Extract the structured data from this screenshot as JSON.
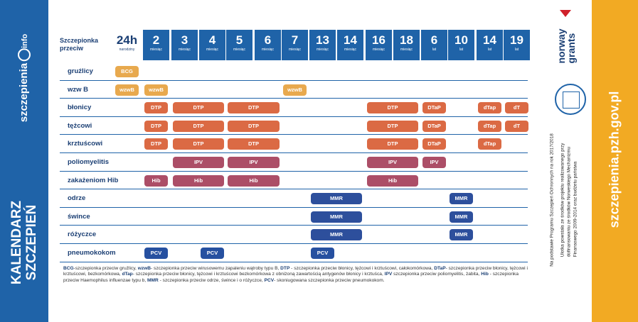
{
  "brand": {
    "text": "szczepienia",
    "suffix": "info"
  },
  "title": {
    "line1": "KALENDARZ",
    "line2": "SZCZEPIEŃ"
  },
  "website": "szczepienia.pzh.gov.pl",
  "header": {
    "label": "Szczepionka przeciw",
    "ages": [
      {
        "n": "24h",
        "u": "narodziny"
      },
      {
        "n": "2",
        "u": "miesiąc"
      },
      {
        "n": "3",
        "u": "miesiąc"
      },
      {
        "n": "4",
        "u": "miesiąc"
      },
      {
        "n": "5",
        "u": "miesiąc"
      },
      {
        "n": "6",
        "u": "miesiąc"
      },
      {
        "n": "7",
        "u": "miesiąc"
      },
      {
        "n": "13",
        "u": "miesiąc"
      },
      {
        "n": "14",
        "u": "miesiąc"
      },
      {
        "n": "16",
        "u": "miesiąc"
      },
      {
        "n": "18",
        "u": "miesiąc"
      },
      {
        "n": "6",
        "u": "lat"
      },
      {
        "n": "10",
        "u": "lat"
      },
      {
        "n": "14",
        "u": "lat"
      },
      {
        "n": "19",
        "u": "lat"
      }
    ]
  },
  "colors": {
    "blue": "#1f63a8",
    "orange": "#f2aa23",
    "navy": "#1b3f74",
    "bcg": "#e8a94e",
    "dtp": "#db6a44",
    "ipv": "#ac4e67",
    "mmr": "#2d4f9c",
    "pcv": "#2650a0"
  },
  "rows": [
    {
      "label": "gruźlicy",
      "pills": [
        {
          "text": "BCG",
          "from": 0,
          "to": 0,
          "color": "#e8a94e"
        }
      ]
    },
    {
      "label": "wzw B",
      "pills": [
        {
          "text": "wzwB",
          "from": 0,
          "to": 0,
          "color": "#e8a94e"
        },
        {
          "text": "wzwB",
          "from": 1,
          "to": 1,
          "color": "#e8a94e"
        },
        {
          "text": "wzwB",
          "from": 6,
          "to": 6,
          "color": "#e8a94e"
        }
      ]
    },
    {
      "label": "błonicy",
      "pills": [
        {
          "text": "DTP",
          "from": 1,
          "to": 1,
          "color": "#db6a44"
        },
        {
          "text": "DTP",
          "from": 2,
          "to": 3,
          "color": "#db6a44"
        },
        {
          "text": "DTP",
          "from": 4,
          "to": 5,
          "color": "#db6a44"
        },
        {
          "text": "DTP",
          "from": 9,
          "to": 10,
          "color": "#db6a44"
        },
        {
          "text": "DTaP",
          "from": 11,
          "to": 11,
          "color": "#db6a44"
        },
        {
          "text": "dTap",
          "from": 13,
          "to": 13,
          "color": "#db6a44"
        },
        {
          "text": "dT",
          "from": 14,
          "to": 14,
          "color": "#db6a44"
        }
      ]
    },
    {
      "label": "tężcowi",
      "pills": [
        {
          "text": "DTP",
          "from": 1,
          "to": 1,
          "color": "#db6a44"
        },
        {
          "text": "DTP",
          "from": 2,
          "to": 3,
          "color": "#db6a44"
        },
        {
          "text": "DTP",
          "from": 4,
          "to": 5,
          "color": "#db6a44"
        },
        {
          "text": "DTP",
          "from": 9,
          "to": 10,
          "color": "#db6a44"
        },
        {
          "text": "DTaP",
          "from": 11,
          "to": 11,
          "color": "#db6a44"
        },
        {
          "text": "dTap",
          "from": 13,
          "to": 13,
          "color": "#db6a44"
        },
        {
          "text": "dT",
          "from": 14,
          "to": 14,
          "color": "#db6a44"
        }
      ]
    },
    {
      "label": "krztuścowi",
      "pills": [
        {
          "text": "DTP",
          "from": 1,
          "to": 1,
          "color": "#db6a44"
        },
        {
          "text": "DTP",
          "from": 2,
          "to": 3,
          "color": "#db6a44"
        },
        {
          "text": "DTP",
          "from": 4,
          "to": 5,
          "color": "#db6a44"
        },
        {
          "text": "DTP",
          "from": 9,
          "to": 10,
          "color": "#db6a44"
        },
        {
          "text": "DTaP",
          "from": 11,
          "to": 11,
          "color": "#db6a44"
        },
        {
          "text": "dTap",
          "from": 13,
          "to": 13,
          "color": "#db6a44"
        }
      ]
    },
    {
      "label": "poliomyelitis",
      "pills": [
        {
          "text": "IPV",
          "from": 2,
          "to": 3,
          "color": "#ac4e67"
        },
        {
          "text": "IPV",
          "from": 4,
          "to": 5,
          "color": "#ac4e67"
        },
        {
          "text": "IPV",
          "from": 9,
          "to": 10,
          "color": "#ac4e67"
        },
        {
          "text": "IPV",
          "from": 11,
          "to": 11,
          "color": "#ac4e67"
        }
      ]
    },
    {
      "label": "zakażeniom Hib",
      "pills": [
        {
          "text": "Hib",
          "from": 1,
          "to": 1,
          "color": "#ac4e67"
        },
        {
          "text": "Hib",
          "from": 2,
          "to": 3,
          "color": "#ac4e67"
        },
        {
          "text": "Hib",
          "from": 4,
          "to": 5,
          "color": "#ac4e67"
        },
        {
          "text": "Hib",
          "from": 9,
          "to": 10,
          "color": "#ac4e67"
        }
      ]
    },
    {
      "label": "odrze",
      "pills": [
        {
          "text": "MMR",
          "from": 7,
          "to": 8,
          "color": "#2d4f9c"
        },
        {
          "text": "MMR",
          "from": 12,
          "to": 12,
          "color": "#2d4f9c"
        }
      ]
    },
    {
      "label": "śwince",
      "pills": [
        {
          "text": "MMR",
          "from": 7,
          "to": 8,
          "color": "#2d4f9c"
        },
        {
          "text": "MMR",
          "from": 12,
          "to": 12,
          "color": "#2d4f9c"
        }
      ]
    },
    {
      "label": "różyczce",
      "pills": [
        {
          "text": "MMR",
          "from": 7,
          "to": 8,
          "color": "#2d4f9c"
        },
        {
          "text": "MMR",
          "from": 12,
          "to": 12,
          "color": "#2d4f9c"
        }
      ]
    },
    {
      "label": "pneumokokom",
      "pills": [
        {
          "text": "PCV",
          "from": 1,
          "to": 1,
          "color": "#2650a0"
        },
        {
          "text": "PCV",
          "from": 3,
          "to": 3,
          "color": "#2650a0"
        },
        {
          "text": "PCV",
          "from": 7,
          "to": 7,
          "color": "#2650a0"
        }
      ]
    }
  ],
  "legend": [
    {
      "k": "BCG",
      "t": "-szczepionka przeciw gruźlicy, "
    },
    {
      "k": "wzwB",
      "t": "- szczepionka przeciw wirusowemu zapaleniu wątroby typu B, "
    },
    {
      "k": "DTP",
      "t": " - szczepionka przeciw błonicy, tężcowi i krztuścowi, całokomórkowa, "
    },
    {
      "k": "DTaP",
      "t": "- szczepionka przeciw błonicy, tężcowi i krztuścowi, bezkomórkowa, "
    },
    {
      "k": "dTap",
      "t": "- szczepionka przeciw błonicy, tężcowi i krztuścowi bezkomórkowa z obniżoną zawartością antygenów błonicy i krztuśca, "
    },
    {
      "k": "IPV",
      "t": " szczepionka przeciw poliomyelitis, żabita, "
    },
    {
      "k": "Hib",
      "t": " - szczepionka przeciw Haemophilus influenzae typu b, "
    },
    {
      "k": "MMR",
      "t": " - szczepionka przeciw odrze, śwince i o różyczce, "
    },
    {
      "k": "PCV",
      "t": "- skoniugowana szczepionka przeciw pneumokokom."
    }
  ],
  "notes": {
    "program": "Na podstawie Programu Szczepień Ochronnych na rok 2017/2018",
    "ulotka1": "Ulotka powstała ze środków projektu realizowanego przy",
    "ulotka2": "dofinansowaniu ze środków Norweskiego Mechanizmu",
    "ulotka3": "Finansowego 2009-2014 oraz budżetu państwa"
  },
  "logo": {
    "norway": "norway",
    "grants": "grants"
  }
}
